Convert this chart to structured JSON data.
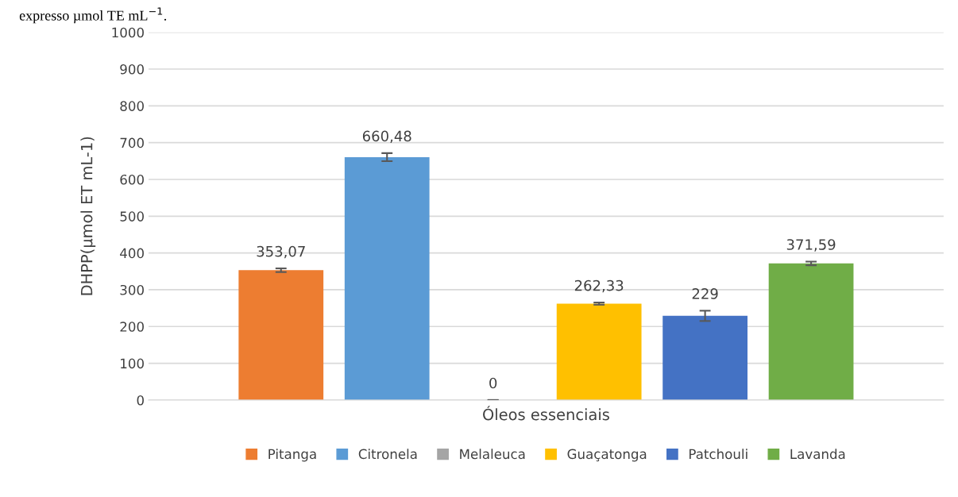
{
  "chart_data": {
    "type": "bar",
    "categories": [
      null
    ],
    "xlabel": "Óleos essenciais",
    "ylabel": "DHPP(µmol ET mL-1)",
    "annotations": [
      "expresso µmol TE mL$^{−1}$."
    ],
    "ylim": [
      0,
      1000
    ],
    "yticks": [
      0,
      100,
      200,
      300,
      400,
      500,
      600,
      700,
      800,
      900,
      1000
    ],
    "grid": "y",
    "legend": "bottom",
    "series": [
      {
        "name": "Pitanga",
        "color": "#ed7d31",
        "values": [
          353.07
        ],
        "errors": [
          5
        ],
        "value_labels": [
          "353,07"
        ]
      },
      {
        "name": "Citronela",
        "color": "#5b9bd5",
        "values": [
          660.48
        ],
        "errors": [
          11
        ],
        "value_labels": [
          "660,48"
        ]
      },
      {
        "name": "Melaleuca",
        "color": "#a5a5a5",
        "values": [
          0
        ],
        "errors": [
          0
        ],
        "value_labels": [
          "0"
        ]
      },
      {
        "name": "Guaçatonga",
        "color": "#ffc000",
        "values": [
          262.33
        ],
        "errors": [
          3
        ],
        "value_labels": [
          "262,33"
        ]
      },
      {
        "name": "Patchouli",
        "color": "#4472c4",
        "values": [
          229
        ],
        "errors": [
          14
        ],
        "value_labels": [
          "229"
        ]
      },
      {
        "name": "Lavanda",
        "color": "#70ad47",
        "values": [
          371.59
        ],
        "errors": [
          5
        ],
        "value_labels": [
          "371,59"
        ]
      }
    ]
  }
}
